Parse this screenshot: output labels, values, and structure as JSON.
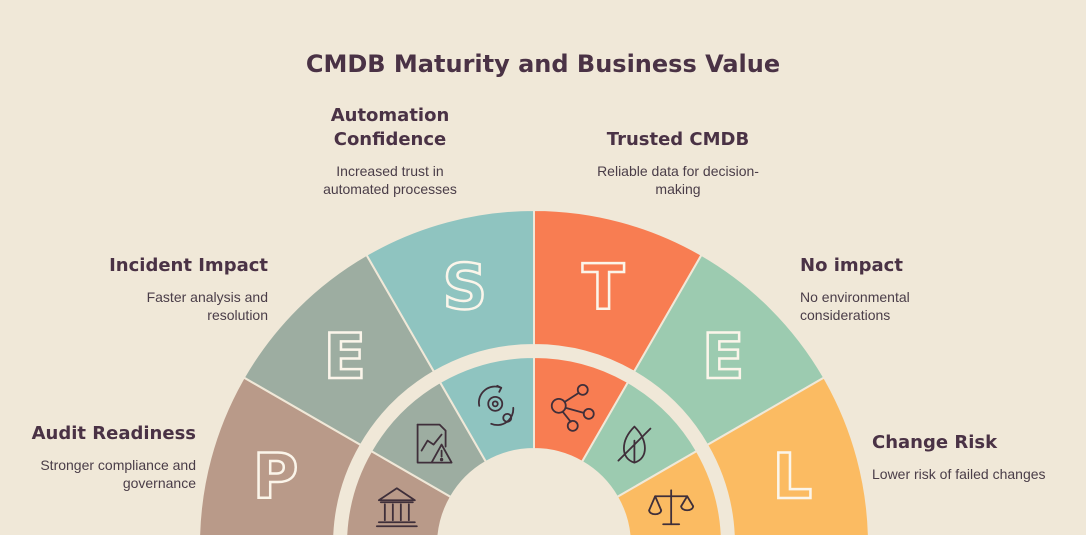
{
  "title": "CMDB Maturity and Business Value",
  "segments": [
    {
      "letter": "P",
      "label": "Audit Readiness",
      "desc": "Stronger compliance and governance",
      "color": "#b99a89",
      "icon": "bank-icon"
    },
    {
      "letter": "E",
      "label": "Incident Impact",
      "desc": "Faster analysis and resolution",
      "color": "#9dada1",
      "icon": "chart-warning-icon"
    },
    {
      "letter": "S",
      "label": "Automation Confidence",
      "desc": "Increased trust in automated processes",
      "color": "#8fc4c0",
      "icon": "gear-automation-icon"
    },
    {
      "letter": "T",
      "label": "Trusted CMDB",
      "desc": "Reliable data for decision-making",
      "color": "#f87d52",
      "icon": "network-nodes-icon"
    },
    {
      "letter": "E",
      "label": "No impact",
      "desc": "No environmental considerations",
      "color": "#9ccbb0",
      "icon": "leaf-slash-icon"
    },
    {
      "letter": "L",
      "label": "Change Risk",
      "desc": "Lower risk of failed changes",
      "color": "#fbbb62",
      "icon": "scales-icon"
    }
  ],
  "labels": {
    "p_label": "Audit Readiness",
    "p_desc_1": "Stronger compliance and",
    "p_desc_2": "governance",
    "e1_label": "Incident Impact",
    "e1_desc_1": "Faster analysis and",
    "e1_desc_2": "resolution",
    "s_label_1": "Automation",
    "s_label_2": "Confidence",
    "s_desc_1": "Increased trust in",
    "s_desc_2": "automated processes",
    "t_label": "Trusted CMDB",
    "t_desc_1": "Reliable data for decision-",
    "t_desc_2": "making",
    "e2_label": "No impact",
    "e2_desc_1": "No environmental",
    "e2_desc_2": "considerations",
    "l_label": "Change Risk",
    "l_desc": "Lower risk of failed changes"
  }
}
